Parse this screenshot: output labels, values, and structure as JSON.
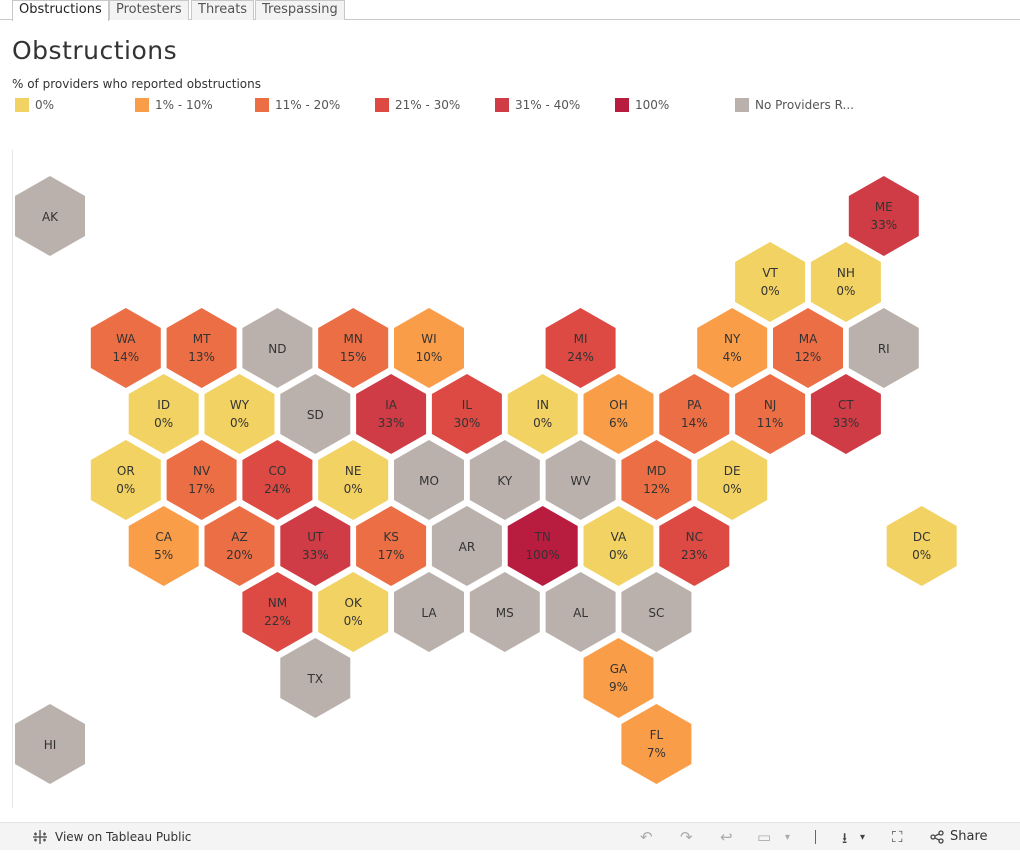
{
  "tabs": [
    {
      "label": "Obstructions",
      "active": true
    },
    {
      "label": "Protesters",
      "active": false
    },
    {
      "label": "Threats",
      "active": false
    },
    {
      "label": "Trespassing",
      "active": false
    }
  ],
  "title": "Obstructions",
  "legend": {
    "title": "% of providers who reported obstructions",
    "items": [
      {
        "label": "0%",
        "color": "#f1d263"
      },
      {
        "label": "1% - 10%",
        "color": "#f99d49"
      },
      {
        "label": "11% - 20%",
        "color": "#ec6e45"
      },
      {
        "label": "21% - 30%",
        "color": "#dc4a43"
      },
      {
        "label": "31% - 40%",
        "color": "#cf3c45"
      },
      {
        "label": "100%",
        "color": "#b81d40"
      },
      {
        "label": "No Providers R...",
        "color": "#bab0ac"
      }
    ]
  },
  "map_data": {
    "type": "hex_tile_map",
    "states": [
      {
        "abbr": "AK",
        "value": "",
        "col": 0,
        "row": 0,
        "category": "No Providers R..."
      },
      {
        "abbr": "ME",
        "value": "33%",
        "col": 11,
        "row": 0,
        "category": "31% - 40%"
      },
      {
        "abbr": "VT",
        "value": "0%",
        "col": 9.5,
        "row": 1,
        "category": "0%"
      },
      {
        "abbr": "NH",
        "value": "0%",
        "col": 10.5,
        "row": 1,
        "category": "0%"
      },
      {
        "abbr": "WA",
        "value": "14%",
        "col": 1,
        "row": 2,
        "category": "11% - 20%"
      },
      {
        "abbr": "MT",
        "value": "13%",
        "col": 2,
        "row": 2,
        "category": "11% - 20%"
      },
      {
        "abbr": "ND",
        "value": "",
        "col": 3,
        "row": 2,
        "category": "No Providers R..."
      },
      {
        "abbr": "MN",
        "value": "15%",
        "col": 4,
        "row": 2,
        "category": "11% - 20%"
      },
      {
        "abbr": "WI",
        "value": "10%",
        "col": 5,
        "row": 2,
        "category": "1% - 10%"
      },
      {
        "abbr": "MI",
        "value": "24%",
        "col": 7,
        "row": 2,
        "category": "21% - 30%"
      },
      {
        "abbr": "NY",
        "value": "4%",
        "col": 9,
        "row": 2,
        "category": "1% - 10%"
      },
      {
        "abbr": "MA",
        "value": "12%",
        "col": 10,
        "row": 2,
        "category": "11% - 20%"
      },
      {
        "abbr": "RI",
        "value": "",
        "col": 11,
        "row": 2,
        "category": "No Providers R..."
      },
      {
        "abbr": "ID",
        "value": "0%",
        "col": 1.5,
        "row": 3,
        "category": "0%"
      },
      {
        "abbr": "WY",
        "value": "0%",
        "col": 2.5,
        "row": 3,
        "category": "0%"
      },
      {
        "abbr": "SD",
        "value": "",
        "col": 3.5,
        "row": 3,
        "category": "No Providers R..."
      },
      {
        "abbr": "IA",
        "value": "33%",
        "col": 4.5,
        "row": 3,
        "category": "31% - 40%"
      },
      {
        "abbr": "IL",
        "value": "30%",
        "col": 5.5,
        "row": 3,
        "category": "21% - 30%"
      },
      {
        "abbr": "IN",
        "value": "0%",
        "col": 6.5,
        "row": 3,
        "category": "0%"
      },
      {
        "abbr": "OH",
        "value": "6%",
        "col": 7.5,
        "row": 3,
        "category": "1% - 10%"
      },
      {
        "abbr": "PA",
        "value": "14%",
        "col": 8.5,
        "row": 3,
        "category": "11% - 20%"
      },
      {
        "abbr": "NJ",
        "value": "11%",
        "col": 9.5,
        "row": 3,
        "category": "11% - 20%"
      },
      {
        "abbr": "CT",
        "value": "33%",
        "col": 10.5,
        "row": 3,
        "category": "31% - 40%"
      },
      {
        "abbr": "OR",
        "value": "0%",
        "col": 1,
        "row": 4,
        "category": "0%"
      },
      {
        "abbr": "NV",
        "value": "17%",
        "col": 2,
        "row": 4,
        "category": "11% - 20%"
      },
      {
        "abbr": "CO",
        "value": "24%",
        "col": 3,
        "row": 4,
        "category": "21% - 30%"
      },
      {
        "abbr": "NE",
        "value": "0%",
        "col": 4,
        "row": 4,
        "category": "0%"
      },
      {
        "abbr": "MO",
        "value": "",
        "col": 5,
        "row": 4,
        "category": "No Providers R..."
      },
      {
        "abbr": "KY",
        "value": "",
        "col": 6,
        "row": 4,
        "category": "No Providers R..."
      },
      {
        "abbr": "WV",
        "value": "",
        "col": 7,
        "row": 4,
        "category": "No Providers R..."
      },
      {
        "abbr": "MD",
        "value": "12%",
        "col": 8,
        "row": 4,
        "category": "11% - 20%"
      },
      {
        "abbr": "DE",
        "value": "0%",
        "col": 9,
        "row": 4,
        "category": "0%"
      },
      {
        "abbr": "CA",
        "value": "5%",
        "col": 1.5,
        "row": 5,
        "category": "1% - 10%"
      },
      {
        "abbr": "AZ",
        "value": "20%",
        "col": 2.5,
        "row": 5,
        "category": "11% - 20%"
      },
      {
        "abbr": "UT",
        "value": "33%",
        "col": 3.5,
        "row": 5,
        "category": "31% - 40%"
      },
      {
        "abbr": "KS",
        "value": "17%",
        "col": 4.5,
        "row": 5,
        "category": "11% - 20%"
      },
      {
        "abbr": "AR",
        "value": "",
        "col": 5.5,
        "row": 5,
        "category": "No Providers R..."
      },
      {
        "abbr": "TN",
        "value": "100%",
        "col": 6.5,
        "row": 5,
        "category": "100%"
      },
      {
        "abbr": "VA",
        "value": "0%",
        "col": 7.5,
        "row": 5,
        "category": "0%"
      },
      {
        "abbr": "NC",
        "value": "23%",
        "col": 8.5,
        "row": 5,
        "category": "21% - 30%"
      },
      {
        "abbr": "DC",
        "value": "0%",
        "col": 11.5,
        "row": 5,
        "category": "0%"
      },
      {
        "abbr": "NM",
        "value": "22%",
        "col": 3,
        "row": 6,
        "category": "21% - 30%"
      },
      {
        "abbr": "OK",
        "value": "0%",
        "col": 4,
        "row": 6,
        "category": "0%"
      },
      {
        "abbr": "LA",
        "value": "",
        "col": 5,
        "row": 6,
        "category": "No Providers R..."
      },
      {
        "abbr": "MS",
        "value": "",
        "col": 6,
        "row": 6,
        "category": "No Providers R..."
      },
      {
        "abbr": "AL",
        "value": "",
        "col": 7,
        "row": 6,
        "category": "No Providers R..."
      },
      {
        "abbr": "SC",
        "value": "",
        "col": 8,
        "row": 6,
        "category": "No Providers R..."
      },
      {
        "abbr": "TX",
        "value": "",
        "col": 3.5,
        "row": 7,
        "category": "No Providers R..."
      },
      {
        "abbr": "GA",
        "value": "9%",
        "col": 7.5,
        "row": 7,
        "category": "1% - 10%"
      },
      {
        "abbr": "HI",
        "value": "",
        "col": 0,
        "row": 8,
        "category": "No Providers R..."
      },
      {
        "abbr": "FL",
        "value": "7%",
        "col": 8,
        "row": 8,
        "category": "1% - 10%"
      }
    ]
  },
  "footer": {
    "view_label": "View on Tableau Public",
    "share_label": "Share",
    "icons": [
      "undo-icon",
      "redo-icon",
      "revert-icon",
      "pause-icon",
      "download-icon",
      "fullscreen-icon",
      "share-icon"
    ]
  }
}
